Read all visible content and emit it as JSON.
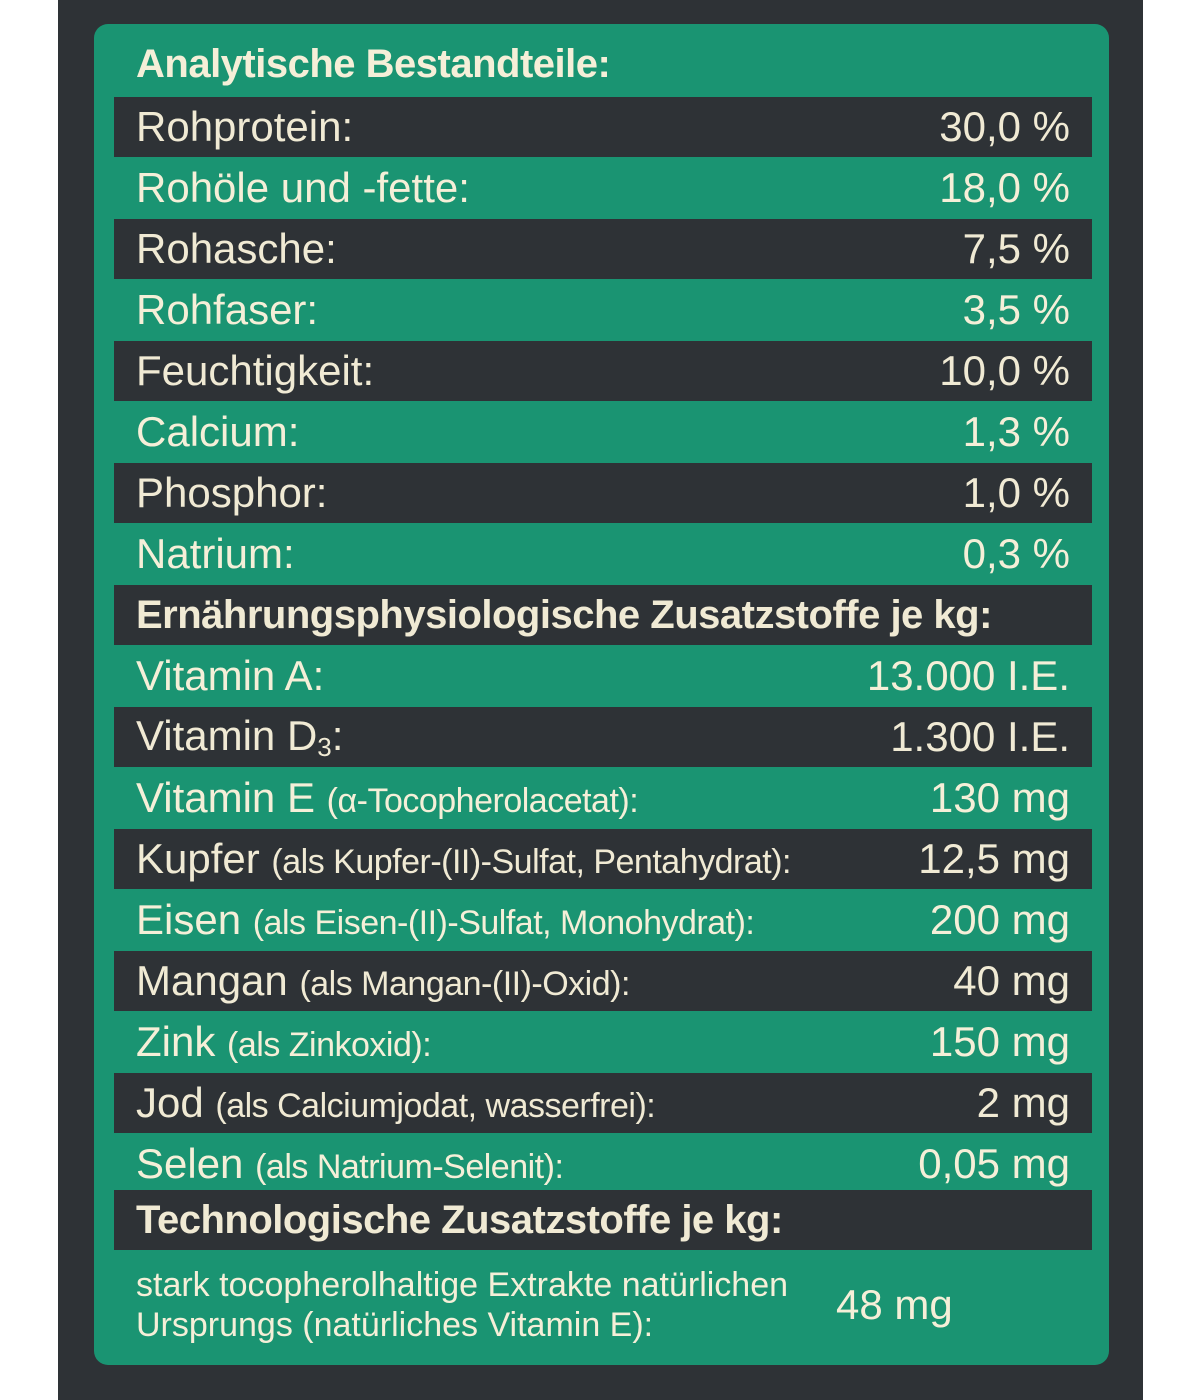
{
  "sections": [
    {
      "heading": "Analytische Bestandteile:",
      "rows": [
        {
          "label": "Rohprotein:",
          "value": "30,0 %"
        },
        {
          "label": "Rohöle und -fette:",
          "value": "18,0 %"
        },
        {
          "label": "Rohasche:",
          "value": "7,5 %"
        },
        {
          "label": "Rohfaser:",
          "value": "3,5 %"
        },
        {
          "label": "Feuchtigkeit:",
          "value": "10,0 %"
        },
        {
          "label": "Calcium:",
          "value": "1,3 %"
        },
        {
          "label": "Phosphor:",
          "value": "1,0 %"
        },
        {
          "label": "Natrium:",
          "value": "0,3 %"
        }
      ]
    },
    {
      "heading": "Ernährungsphysiologische Zusatzstoffe je kg:",
      "rows": [
        {
          "label": "Vitamin A:",
          "value": "13.000 I.E."
        },
        {
          "label": "Vitamin D",
          "subscript": "3",
          "label_suffix": ":",
          "value": "1.300 I.E."
        },
        {
          "label": "Vitamin E",
          "detail": "(α-Tocopherolacetat):",
          "value": "130 mg"
        },
        {
          "label": "Kupfer",
          "detail": "(als Kupfer-(II)-Sulfat, Pentahydrat):",
          "value": "12,5 mg"
        },
        {
          "label": "Eisen",
          "detail": "(als Eisen-(II)-Sulfat, Monohydrat):",
          "value": "200 mg"
        },
        {
          "label": "Mangan",
          "detail": "(als Mangan-(II)-Oxid):",
          "value": "40 mg"
        },
        {
          "label": "Zink",
          "detail": "(als Zinkoxid):",
          "value": "150 mg"
        },
        {
          "label": "Jod",
          "detail": "(als Calciumjodat, wasserfrei):",
          "value": "2 mg"
        },
        {
          "label": "Selen",
          "detail": "(als Natrium-Selenit):",
          "value": "0,05 mg"
        }
      ]
    },
    {
      "heading": "Technologische Zusatzstoffe je kg:",
      "rows": [
        {
          "label": "stark tocopherolhaltige Extrakte natürlichen Ursprungs (natürliches Vitamin E):",
          "value": "48 mg"
        }
      ]
    }
  ],
  "colors": {
    "background": "#2e3236",
    "panel": "#1a9472",
    "text": "#f0ead4"
  }
}
